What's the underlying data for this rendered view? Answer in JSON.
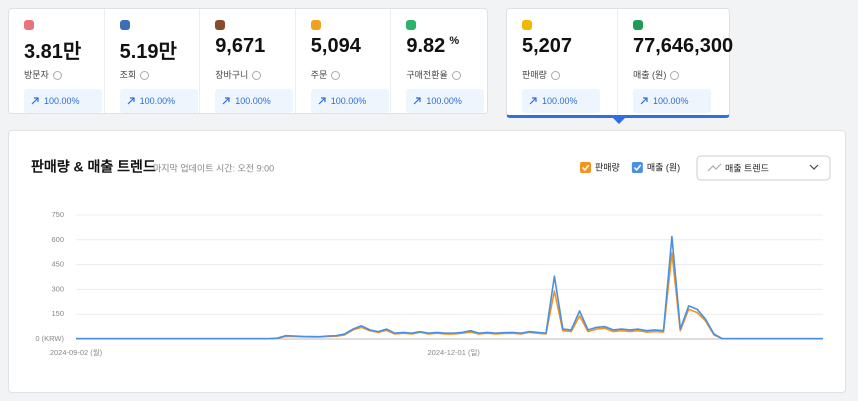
{
  "stats": [
    {
      "value": "3.81만",
      "label": "방문자",
      "change": "100.00%"
    },
    {
      "value": "5.19만",
      "label": "조회",
      "change": "100.00%"
    },
    {
      "value": "9,671",
      "label": "장바구니",
      "change": "100.00%"
    },
    {
      "value": "5,094",
      "label": "주문",
      "change": "100.00%"
    },
    {
      "value": "9.82",
      "unit": "%",
      "label": "구매전환율",
      "change": "100.00%"
    }
  ],
  "selected_stats": [
    {
      "value": "5,207",
      "label": "판매량",
      "change": "100.00%"
    },
    {
      "value": "77,646,300",
      "label": "매출 (원)",
      "change": "100.00%"
    }
  ],
  "panel": {
    "title": "판매량 & 매출 트렌드",
    "updated": "마지막 업데이트 시간: 오전 9:00",
    "dropdown": "매출 트렌드"
  },
  "chart_data": {
    "type": "line",
    "categories": [
      "2024-09-02 (월)",
      null,
      null,
      null,
      null,
      null,
      null,
      null,
      null,
      null,
      null,
      null,
      null,
      null,
      null,
      null,
      null,
      null,
      null,
      null,
      null,
      null,
      null,
      null,
      null,
      null,
      null,
      null,
      null,
      null,
      null,
      null,
      null,
      null,
      null,
      null,
      null,
      null,
      null,
      null,
      null,
      null,
      null,
      null,
      null,
      "2024-12-01 (일)",
      null,
      null,
      null,
      null,
      null,
      null,
      null,
      null,
      null,
      null,
      null,
      null,
      null,
      null,
      null,
      null,
      null,
      null,
      null,
      null,
      null,
      null,
      null,
      null,
      null,
      null,
      null,
      null,
      null,
      null,
      null,
      null,
      null,
      null,
      null,
      null,
      null,
      null,
      null,
      null,
      null,
      null,
      null,
      null
    ],
    "series": [
      {
        "name": "판매량",
        "color": "#f5931e",
        "values": [
          2,
          2,
          2,
          2,
          2,
          2,
          2,
          2,
          2,
          2,
          2,
          2,
          2,
          2,
          2,
          2,
          2,
          2,
          2,
          2,
          2,
          2,
          2,
          2,
          4,
          16,
          15,
          14,
          13,
          12,
          15,
          17,
          25,
          55,
          70,
          50,
          40,
          52,
          30,
          35,
          30,
          40,
          30,
          35,
          30,
          30,
          35,
          42,
          30,
          35,
          30,
          33,
          35,
          30,
          40,
          35,
          30,
          290,
          50,
          45,
          140,
          45,
          60,
          65,
          45,
          50,
          45,
          50,
          42,
          45,
          42,
          520,
          50,
          180,
          160,
          110,
          25,
          2,
          2,
          2,
          2,
          2,
          2,
          2,
          2,
          2,
          2,
          2,
          2,
          2
        ]
      },
      {
        "name": "매출 (원)",
        "color": "#4a90e2",
        "values": [
          2,
          2,
          2,
          2,
          2,
          2,
          2,
          2,
          2,
          2,
          2,
          2,
          2,
          2,
          2,
          2,
          2,
          2,
          2,
          2,
          2,
          2,
          2,
          2,
          5,
          20,
          18,
          16,
          15,
          14,
          18,
          20,
          30,
          60,
          80,
          55,
          45,
          60,
          35,
          40,
          35,
          45,
          35,
          40,
          35,
          35,
          40,
          50,
          35,
          40,
          35,
          38,
          40,
          35,
          45,
          40,
          35,
          380,
          60,
          55,
          170,
          55,
          70,
          75,
          55,
          60,
          55,
          60,
          50,
          55,
          50,
          620,
          60,
          200,
          180,
          120,
          30,
          2,
          2,
          2,
          2,
          2,
          2,
          2,
          2,
          2,
          2,
          2,
          2,
          2
        ]
      }
    ],
    "ylim": [
      0,
      750
    ],
    "yticks": [
      {
        "value": 0,
        "label": "0 (KRW)"
      },
      150,
      300,
      450,
      600,
      750
    ],
    "grid": true
  }
}
